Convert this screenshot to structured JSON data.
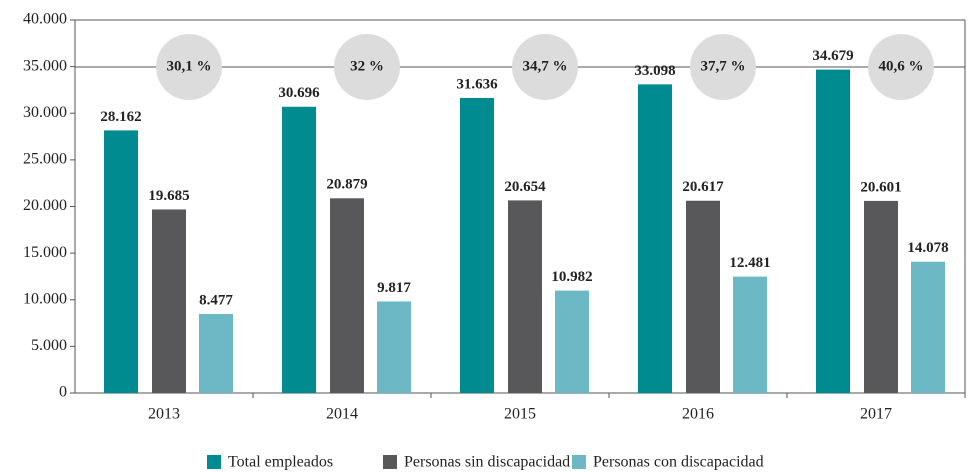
{
  "chart_data": {
    "type": "bar",
    "categories": [
      "2013",
      "2014",
      "2015",
      "2016",
      "2017"
    ],
    "series": [
      {
        "name": "Total empleados",
        "color": "#008b90",
        "values": [
          28162,
          30696,
          31636,
          33098,
          34679
        ],
        "value_labels": [
          "28.162",
          "30.696",
          "31.636",
          "33.098",
          "34.679"
        ]
      },
      {
        "name": "Personas sin discapacidad",
        "color": "#58585a",
        "values": [
          19685,
          20879,
          20654,
          20617,
          20601
        ],
        "value_labels": [
          "19.685",
          "20.879",
          "20.654",
          "20.617",
          "20.601"
        ]
      },
      {
        "name": "Personas con discapacidad",
        "color": "#6cb9c5",
        "values": [
          8477,
          9817,
          10982,
          12481,
          14078
        ],
        "value_labels": [
          "8.477",
          "9.817",
          "10.982",
          "12.481",
          "14.078"
        ]
      }
    ],
    "annotations": [
      "30,1 %",
      "32 %",
      "34,7 %",
      "37,7 %",
      "40,6 %"
    ],
    "ylim": [
      0,
      40000
    ],
    "yticks": [
      0,
      {
        "value": 5000,
        "label": "5.000"
      },
      {
        "value": 10000,
        "label": "10.000"
      },
      {
        "value": 15000,
        "label": "15.000"
      },
      {
        "value": 20000,
        "label": "20.000"
      },
      {
        "value": 25000,
        "label": "25.000"
      },
      {
        "value": 30000,
        "label": "30.000"
      },
      {
        "value": 35000,
        "label": "35.000"
      },
      {
        "value": 40000,
        "label": "40.000"
      }
    ],
    "grid": false
  }
}
